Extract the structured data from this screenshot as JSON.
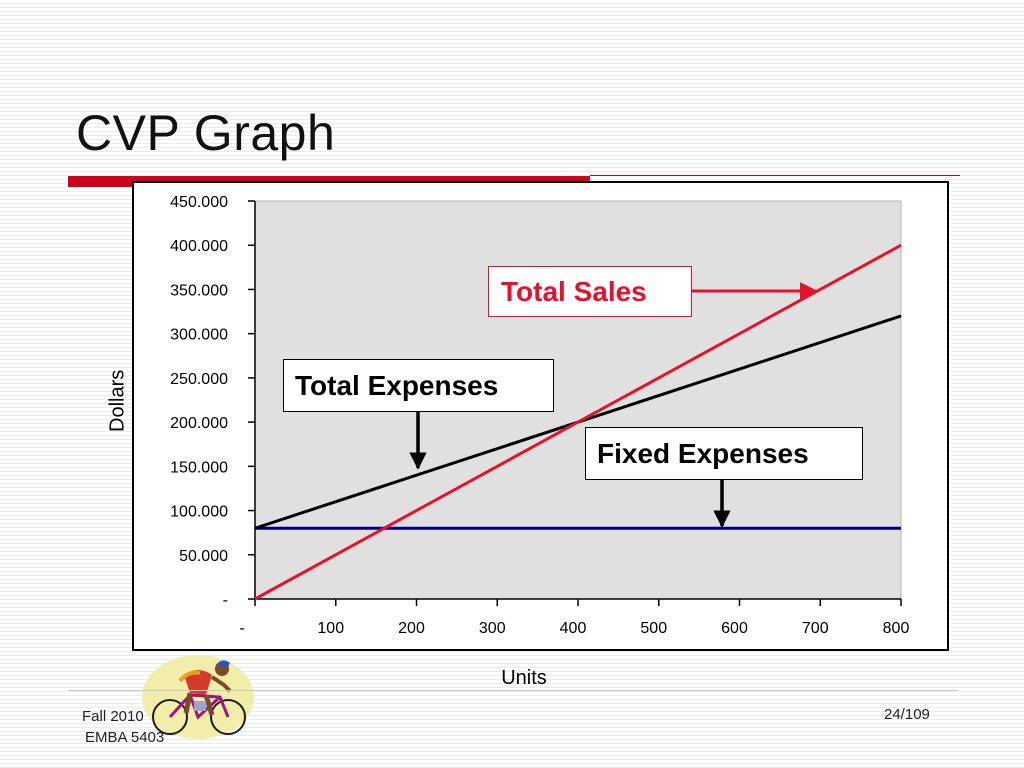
{
  "slide": {
    "title": "CVP Graph",
    "footer_course": "Fall 2010",
    "footer_program": "EMBA 5403",
    "page_number": "24/109"
  },
  "callouts": {
    "total_sales": "Total Sales",
    "total_expenses": "Total Expenses",
    "fixed_expenses": "Fixed Expenses"
  },
  "colors": {
    "accent": "#d0021b",
    "sales_line": "#e8102a",
    "expenses_line": "#000000",
    "fixed_line": "#000080",
    "plot_background": "#e0e0e0"
  },
  "chart_data": {
    "type": "line",
    "xlabel": "Units",
    "ylabel": "Dollars",
    "x_ticks": [
      0,
      100,
      200,
      300,
      400,
      500,
      600,
      700,
      800
    ],
    "x_tick_labels": [
      "-",
      "100",
      "200",
      "300",
      "400",
      "500",
      "600",
      "700",
      "800"
    ],
    "y_ticks": [
      0,
      50000,
      100000,
      150000,
      200000,
      250000,
      300000,
      350000,
      400000,
      450000
    ],
    "y_tick_labels": [
      "-",
      "50.000",
      "100.000",
      "150.000",
      "200.000",
      "250.000",
      "300.000",
      "350.000",
      "400.000",
      "450.000"
    ],
    "xlim": [
      0,
      800
    ],
    "ylim": [
      0,
      450000
    ],
    "grid": false,
    "series": [
      {
        "name": "Total Sales",
        "x": [
          0,
          800
        ],
        "y": [
          0,
          400000
        ],
        "color": "#e8102a"
      },
      {
        "name": "Total Expenses",
        "x": [
          0,
          800
        ],
        "y": [
          80000,
          320000
        ],
        "color": "#000000"
      },
      {
        "name": "Fixed Expenses",
        "x": [
          0,
          800
        ],
        "y": [
          80000,
          80000
        ],
        "color": "#000080"
      }
    ]
  }
}
